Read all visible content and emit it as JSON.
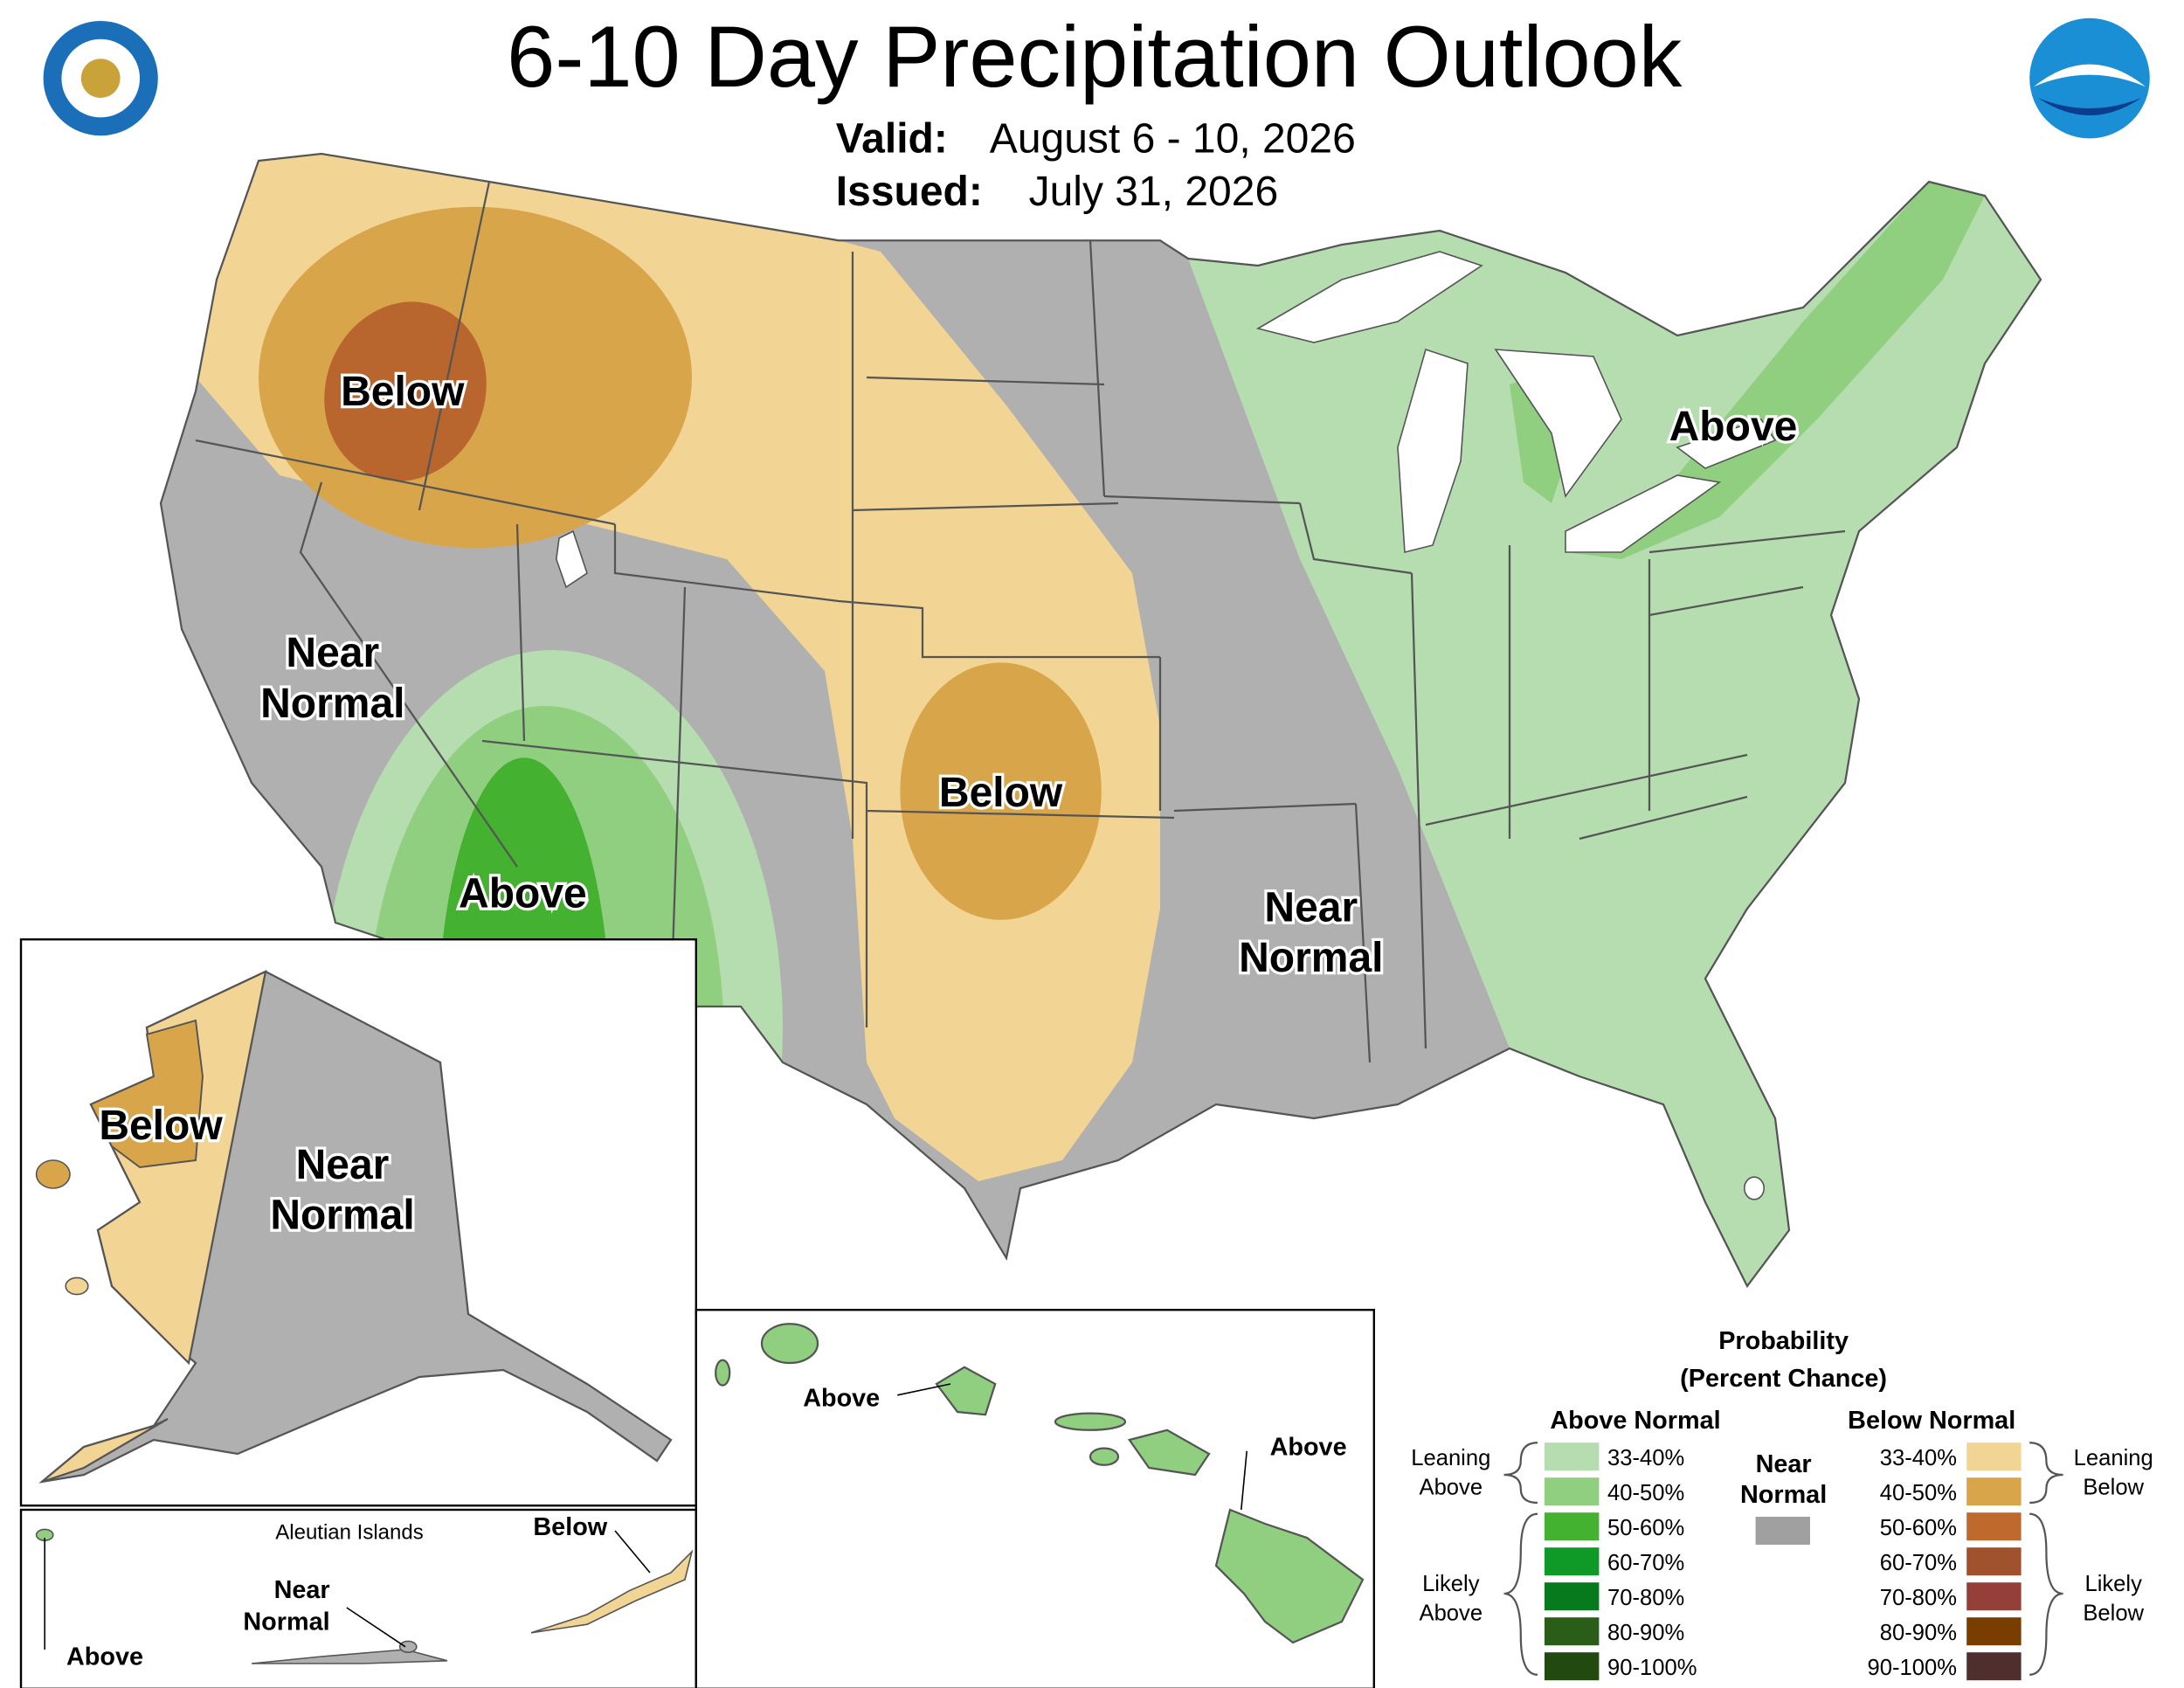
{
  "header": {
    "title": "6-10 Day Precipitation Outlook",
    "valid_label": "Valid:",
    "valid": "August 6 - 10, 2026",
    "issued_label": "Issued:",
    "issued": "July 31, 2026"
  },
  "conus_labels": [
    {
      "lines": [
        "Below"
      ]
    },
    {
      "lines": [
        "Near",
        "Normal"
      ]
    },
    {
      "lines": [
        "Above"
      ]
    },
    {
      "lines": [
        "Below"
      ]
    },
    {
      "lines": [
        "Near",
        "Normal"
      ]
    },
    {
      "lines": [
        "Above"
      ]
    }
  ],
  "alaska_labels": [
    {
      "lines": [
        "Below"
      ]
    },
    {
      "lines": [
        "Near",
        "Normal"
      ]
    }
  ],
  "aleutian": {
    "title": "Aleutian Islands",
    "labels": [
      {
        "lines": [
          "Below"
        ]
      },
      {
        "lines": [
          "Near",
          "Normal"
        ]
      },
      {
        "lines": [
          "Above"
        ]
      }
    ]
  },
  "hawaii_labels": [
    {
      "lines": [
        "Above"
      ]
    },
    {
      "lines": [
        "Above"
      ]
    }
  ],
  "legend": {
    "title": [
      "Probability",
      "(Percent Chance)"
    ],
    "above_header": "Above Normal",
    "below_header": "Below Normal",
    "near_label": [
      "Near",
      "Normal"
    ],
    "near_color": "#a0a0a0",
    "groups": [
      {
        "lines": [
          "Leaning",
          "Above"
        ]
      },
      {
        "lines": [
          "Likely",
          "Above"
        ]
      },
      {
        "lines": [
          "Leaning",
          "Below"
        ]
      },
      {
        "lines": [
          "Likely",
          "Below"
        ]
      }
    ],
    "above_items": [
      {
        "label": "33-40%",
        "color": "#b5ddb0"
      },
      {
        "label": "40-50%",
        "color": "#90cf80"
      },
      {
        "label": "50-60%",
        "color": "#45b130"
      },
      {
        "label": "60-70%",
        "color": "#0f9a28"
      },
      {
        "label": "70-80%",
        "color": "#067a1c"
      },
      {
        "label": "80-90%",
        "color": "#2a5e18"
      },
      {
        "label": "90-100%",
        "color": "#224a10"
      }
    ],
    "below_items": [
      {
        "label": "33-40%",
        "color": "#f2d595"
      },
      {
        "label": "40-50%",
        "color": "#d9a54b"
      },
      {
        "label": "50-60%",
        "color": "#c0692e"
      },
      {
        "label": "60-70%",
        "color": "#a0522d"
      },
      {
        "label": "70-80%",
        "color": "#943f38"
      },
      {
        "label": "80-90%",
        "color": "#7a3d00"
      },
      {
        "label": "90-100%",
        "color": "#4f2e2e"
      }
    ]
  }
}
